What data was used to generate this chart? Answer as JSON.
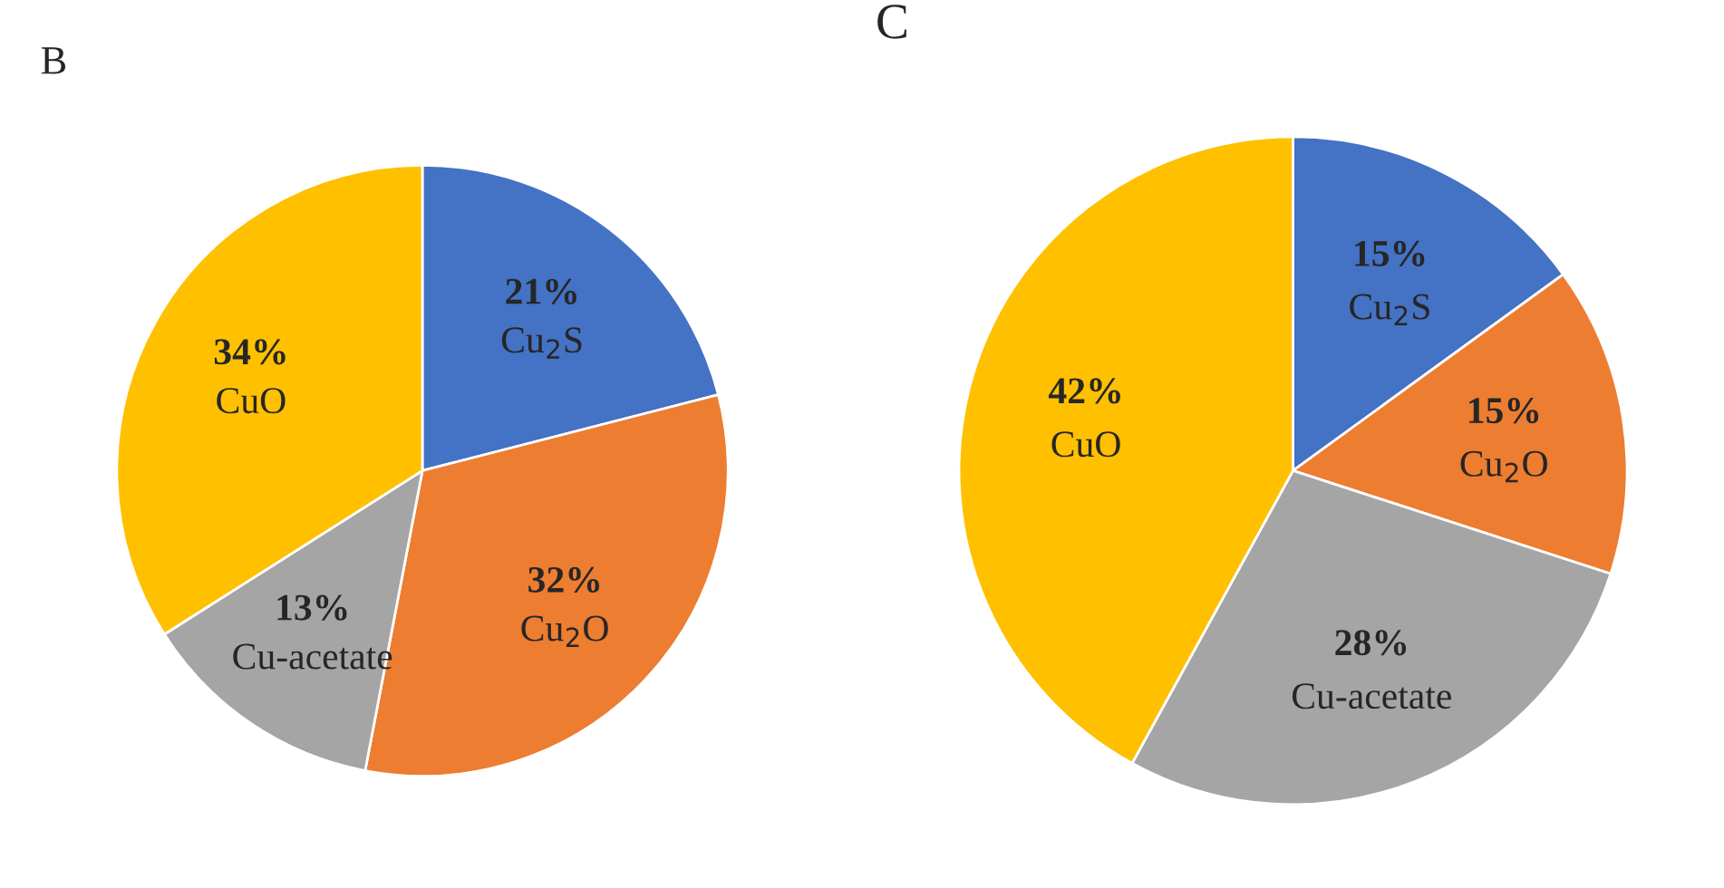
{
  "chart_data": [
    {
      "type": "pie",
      "title": "B",
      "categories": [
        "Cu$_{2}$S",
        "Cu$_{2}$O",
        "Cu-acetate",
        "CuO"
      ],
      "values": [
        21,
        32,
        13,
        34
      ],
      "value_labels": [
        "21%",
        "32%",
        "13%",
        "34%"
      ],
      "colors": [
        "#4472c4",
        "#ed7d31",
        "#a5a5a5",
        "#ffc000"
      ],
      "legend": false
    },
    {
      "type": "pie",
      "title": "C",
      "categories": [
        "Cu$_{2}$S",
        "Cu$_{2}$O",
        "Cu-acetate",
        "CuO"
      ],
      "values": [
        15,
        15,
        28,
        42
      ],
      "value_labels": [
        "15%",
        "15%",
        "28%",
        "42%"
      ],
      "colors": [
        "#4472c4",
        "#ed7d31",
        "#a5a5a5",
        "#ffc000"
      ],
      "legend": false
    }
  ]
}
